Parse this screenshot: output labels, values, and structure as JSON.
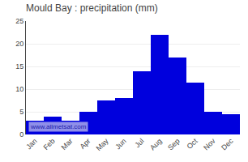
{
  "chart_data": {
    "type": "bar",
    "title": "Mould Bay : precipitation (mm)",
    "categories": [
      "Jan",
      "Feb",
      "Mar",
      "Apr",
      "May",
      "Jun",
      "Jul",
      "Aug",
      "Sep",
      "Oct",
      "Nov",
      "Dec"
    ],
    "values": [
      3,
      4,
      3,
      5,
      7.5,
      8,
      14,
      22,
      17,
      11.5,
      5,
      4.5
    ],
    "color": "#0000DD",
    "ylim": [
      0,
      25
    ],
    "yticks": [
      0,
      5,
      10,
      15,
      20,
      25
    ],
    "grid": true,
    "annotations": [
      "www.allmetsat.com"
    ]
  }
}
